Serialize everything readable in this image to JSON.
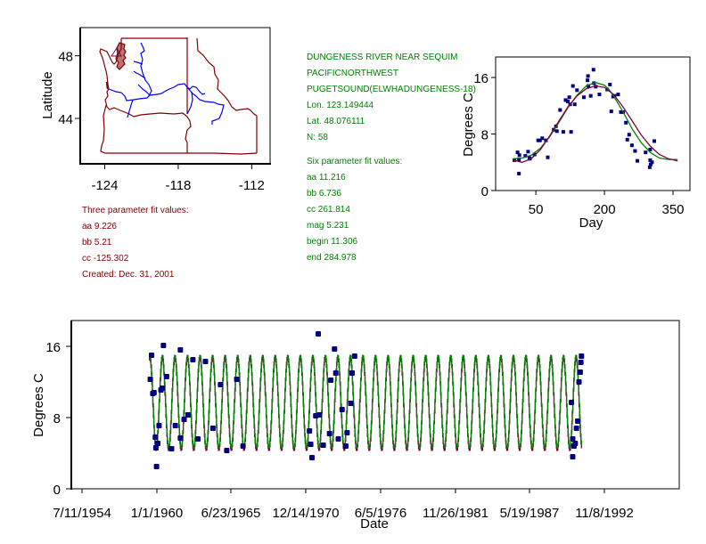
{
  "station": {
    "name": "DUNGENESS RIVER NEAR SEQUIM",
    "region": "PACIFICNORTHWEST",
    "subregion": "PUGETSOUND(ELWHADUNGENESS-18)",
    "lon": "Lon. 123.149444",
    "lat": "Lat. 48.076111",
    "n": "N: 58"
  },
  "six_param": {
    "title": "Six parameter fit values:",
    "aa": "aa 11.216",
    "bb": "bb 6.736",
    "cc": "cc 261.814",
    "mag": "mag 5.231",
    "begin": "begin 11.306",
    "end": "end 284.978"
  },
  "three_param": {
    "title": "Three parameter fit values:",
    "aa": "aa 9.226",
    "bb": "bb 5.21",
    "cc": "cc -125.302",
    "created": "Created:   Dec. 31, 2001"
  },
  "colors": {
    "six_param": "#008000",
    "three_param": "#800040",
    "observed": "#000080",
    "state_borders": "#800000",
    "rivers": "#0000ff"
  },
  "chart_data": [
    {
      "type": "map",
      "title": "",
      "xlabel": "",
      "ylabel": "Latitude",
      "xticks": [
        "-124",
        "-118",
        "-112"
      ],
      "xtick_values": [
        -124,
        -118,
        -112
      ],
      "yticks": [
        "48",
        "44"
      ],
      "ytick_values": [
        48,
        44
      ],
      "xlim": [
        -126,
        -110.5
      ],
      "ylim": [
        41.1,
        49.8
      ],
      "station_marker": {
        "lon": -123.149444,
        "lat": 48.076111,
        "symbol": "triangle"
      },
      "layers": [
        "state-borders (WA, OR, ID)",
        "rivers (Columbia, Snake)"
      ]
    },
    {
      "type": "scatter",
      "title": "",
      "xlabel": "Day",
      "ylabel": "Degrees C",
      "xticks": [
        "50",
        "200",
        "350"
      ],
      "xtick_values": [
        50,
        200,
        350
      ],
      "yticks": [
        "0",
        "8",
        "16"
      ],
      "ytick_values": [
        0,
        8,
        16
      ],
      "xlim": [
        -38,
        387
      ],
      "ylim": [
        0,
        18.9
      ],
      "series": [
        {
          "name": "observed",
          "points": [
            [
              3,
              4.3
            ],
            [
              10,
              5.4
            ],
            [
              13,
              2.4
            ],
            [
              14,
              5
            ],
            [
              13,
              4.4
            ],
            [
              27,
              4.9
            ],
            [
              33,
              5.5
            ],
            [
              36,
              4.6
            ],
            [
              37,
              4.5
            ],
            [
              47,
              5.1
            ],
            [
              55,
              7.1
            ],
            [
              59,
              7.1
            ],
            [
              64,
              7.4
            ],
            [
              72,
              7.1
            ],
            [
              76,
              4.7
            ],
            [
              89,
              8.6
            ],
            [
              94,
              9.1
            ],
            [
              96,
              8.4
            ],
            [
              103,
              11.4
            ],
            [
              110,
              8.3
            ],
            [
              115,
              12.8
            ],
            [
              120,
              12.6
            ],
            [
              123,
              13.2
            ],
            [
              125,
              12.2
            ],
            [
              127,
              8.3
            ],
            [
              131,
              14.8
            ],
            [
              135,
              12.2
            ],
            [
              140,
              14.2
            ],
            [
              155,
              13.2
            ],
            [
              163,
              15.6
            ],
            [
              164,
              16.2
            ],
            [
              165,
              14.8
            ],
            [
              170,
              13.4
            ],
            [
              176,
              17.1
            ],
            [
              177,
              15.2
            ],
            [
              181,
              14.7
            ],
            [
              189,
              13.6
            ],
            [
              206,
              14.3
            ],
            [
              212,
              15
            ],
            [
              215,
              11.2
            ],
            [
              219,
              13.3
            ],
            [
              222,
              13.4
            ],
            [
              230,
              13.6
            ],
            [
              236,
              11.1
            ],
            [
              241,
              11.1
            ],
            [
              247,
              9.6
            ],
            [
              250,
              7.2
            ],
            [
              254,
              7.9
            ],
            [
              260,
              6.4
            ],
            [
              267,
              5.6
            ],
            [
              272,
              4.2
            ],
            [
              290,
              5.4
            ],
            [
              300,
              5.8
            ],
            [
              299,
              3.3
            ],
            [
              300,
              4.3
            ],
            [
              301,
              3.7
            ],
            [
              304,
              4
            ],
            [
              309,
              7
            ]
          ]
        },
        {
          "name": "six parameter fit",
          "x": [
            0,
            20,
            40,
            60,
            80,
            100,
            120,
            140,
            160,
            180,
            200,
            210,
            220,
            240,
            260,
            280,
            300,
            320,
            340,
            360
          ],
          "y": [
            4.5,
            4.6,
            5.0,
            6.0,
            7.6,
            9.6,
            11.7,
            13.5,
            14.8,
            15.3,
            14.9,
            14.3,
            13.4,
            11.2,
            8.8,
            6.8,
            5.4,
            4.6,
            4.4,
            4.4
          ]
        },
        {
          "name": "three parameter fit",
          "x": [
            0,
            20,
            40,
            60,
            80,
            100,
            120,
            140,
            160,
            180,
            200,
            220,
            240,
            260,
            280,
            300,
            320,
            340,
            360
          ],
          "y": [
            4.3,
            4.0,
            4.5,
            5.8,
            7.7,
            9.8,
            11.8,
            13.4,
            14.4,
            14.8,
            14.6,
            13.6,
            11.9,
            9.9,
            7.9,
            6.3,
            5.1,
            4.5,
            4.2
          ]
        }
      ]
    },
    {
      "type": "line",
      "title": "",
      "xlabel": "Date",
      "ylabel": "Degrees C",
      "xticks": [
        "7/11/1954",
        "1/1/1960",
        "6/23/1965",
        "12/14/1970",
        "6/5/1976",
        "11/26/1981",
        "5/19/1987",
        "11/8/1992"
      ],
      "yticks": [
        "0",
        "8",
        "16"
      ],
      "ytick_values": [
        0,
        8,
        16
      ],
      "ylim": [
        0,
        18.9
      ],
      "xlim_years": [
        1953.3,
        2001.8
      ],
      "series": [
        {
          "name": "six parameter fit",
          "range_years": [
            1959.5,
            1994.0
          ],
          "amplitude_c": 5.2,
          "mean_c": 9.8
        },
        {
          "name": "three parameter fit",
          "range_years": [
            1959.5,
            1994.0
          ],
          "amplitude_c": 5.2,
          "mean_c": 9.5
        },
        {
          "name": "observed",
          "points_year": [
            [
              1959.6,
              12.3
            ],
            [
              1959.7,
              15
            ],
            [
              1959.8,
              10.7
            ],
            [
              1959.9,
              10.8
            ],
            [
              1960.0,
              5.8
            ],
            [
              1960.05,
              4.6
            ],
            [
              1960.1,
              2.5
            ],
            [
              1960.2,
              5.1
            ],
            [
              1960.3,
              7.1
            ],
            [
              1960.45,
              11.1
            ],
            [
              1960.55,
              11.3
            ],
            [
              1960.65,
              16.1
            ],
            [
              1960.9,
              12.6
            ],
            [
              1961.3,
              4.5
            ],
            [
              1961.6,
              7.1
            ],
            [
              1962.0,
              15.6
            ],
            [
              1962.0,
              5.7
            ],
            [
              1962.3,
              7.8
            ],
            [
              1962.6,
              8.3
            ],
            [
              1963.0,
              14.5
            ],
            [
              1963.4,
              5.6
            ],
            [
              1964.0,
              14.3
            ],
            [
              1964.6,
              6.8
            ],
            [
              1965.2,
              11.7
            ],
            [
              1965.7,
              4.3
            ],
            [
              1966.5,
              12.3
            ],
            [
              1967.0,
              4.8
            ],
            [
              1972.5,
              3.5
            ],
            [
              1972.3,
              6.5
            ],
            [
              1972.8,
              8.2
            ],
            [
              1972.4,
              5.0
            ],
            [
              1973.0,
              17.4
            ],
            [
              1973.1,
              8.3
            ],
            [
              1973.4,
              4.9
            ],
            [
              1973.9,
              6.2
            ],
            [
              1974.3,
              15.7
            ],
            [
              1974.4,
              13.0
            ],
            [
              1974.0,
              12.2
            ],
            [
              1974.6,
              5.6
            ],
            [
              1974.9,
              8.9
            ],
            [
              1975.2,
              4.8
            ],
            [
              1975.3,
              6.3
            ],
            [
              1975.6,
              9.6
            ],
            [
              1975.7,
              13.0
            ],
            [
              1975.9,
              14.9
            ],
            [
              1993.2,
              9.7
            ],
            [
              1993.3,
              5.6
            ],
            [
              1993.4,
              4.8
            ],
            [
              1993.3,
              3.6
            ],
            [
              1993.5,
              5.1
            ],
            [
              1993.6,
              6.8
            ],
            [
              1993.7,
              7.6
            ],
            [
              1993.8,
              12.0
            ],
            [
              1993.9,
              13.1
            ],
            [
              1993.95,
              14.2
            ],
            [
              1994.0,
              14.9
            ]
          ]
        }
      ]
    }
  ]
}
